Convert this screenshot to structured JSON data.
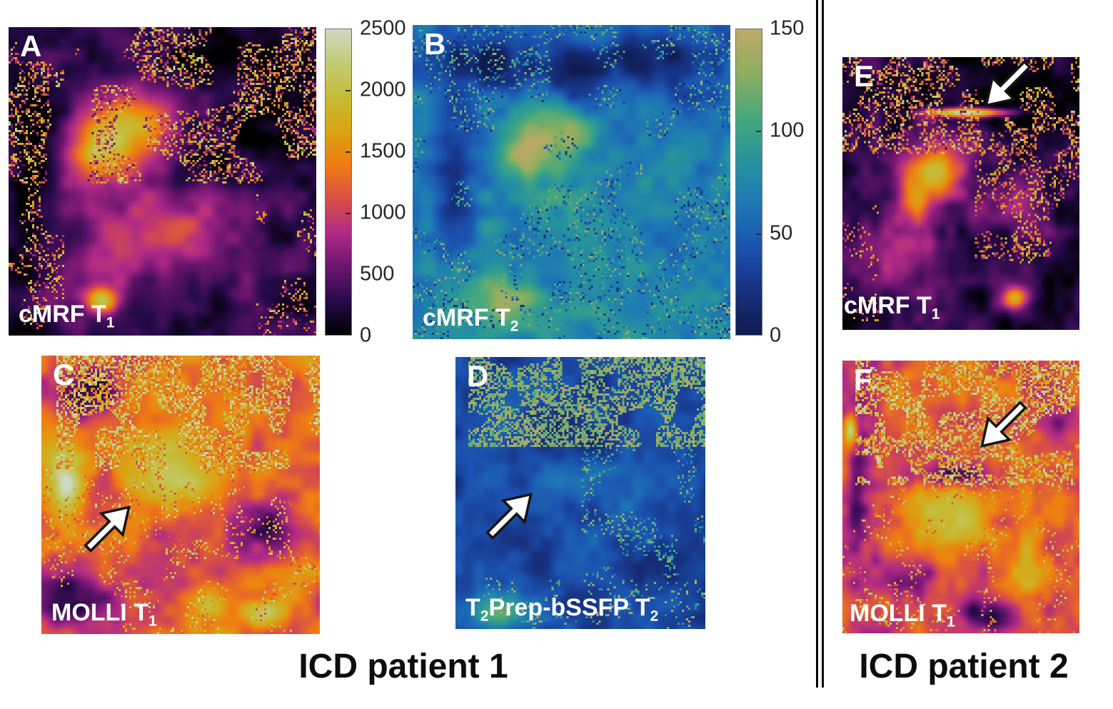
{
  "figure": {
    "caption_patient1": "ICD patient 1",
    "caption_patient2": "ICD patient 2"
  },
  "panels": [
    {
      "letter": "A",
      "label": "cMRF T₁",
      "colormap": "t1",
      "arrow": ""
    },
    {
      "letter": "B",
      "label": "cMRF T₂",
      "colormap": "t2",
      "arrow": ""
    },
    {
      "letter": "C",
      "label": "MOLLI T₁",
      "colormap": "t1",
      "arrow": "up-right"
    },
    {
      "letter": "D",
      "label": "T₂Prep-bSSFP T₂",
      "colormap": "t2",
      "arrow": "up-right"
    },
    {
      "letter": "E",
      "label": "cMRF T₁",
      "colormap": "t1",
      "arrow": "down-left"
    },
    {
      "letter": "F",
      "label": "MOLLI T₁",
      "colormap": "t1",
      "arrow": "down-left"
    }
  ],
  "colorbars": [
    {
      "id": "t1",
      "ticks": [
        "2500",
        "2000",
        "1500",
        "1000",
        "500",
        "0"
      ],
      "stops": [
        "#000002",
        "#260a49",
        "#6b156f",
        "#b02a85",
        "#d94f46",
        "#ef7c12",
        "#d9a414",
        "#c6bb35",
        "#c3cc74",
        "#cfd8c3"
      ]
    },
    {
      "id": "t2",
      "ticks": [
        "150",
        "100",
        "50",
        "0"
      ],
      "stops": [
        "#101a4e",
        "#16307f",
        "#1b52b0",
        "#1d78b4",
        "#27949c",
        "#47a87c",
        "#8fae5e",
        "#bfa969"
      ]
    }
  ],
  "colors": {
    "arrow_fill": "#ffffff",
    "arrow_outline": "#141414",
    "separator": "#000000",
    "background": "#ffffff"
  }
}
